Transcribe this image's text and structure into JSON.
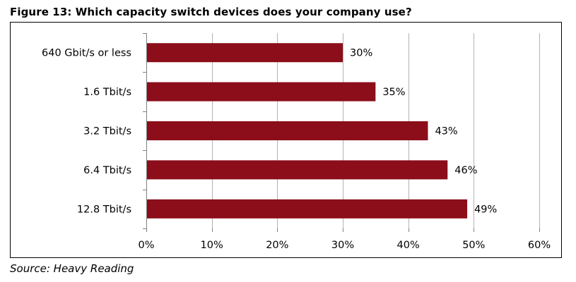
{
  "figure": {
    "title": "Figure 13: Which capacity switch devices does your company use?",
    "source": "Source: Heavy Reading"
  },
  "chart_data": {
    "type": "bar",
    "orientation": "horizontal",
    "title": "Figure 13: Which capacity switch devices does your company use?",
    "xlabel": "",
    "ylabel": "",
    "categories": [
      "640 Gbit/s or less",
      "1.6 Tbit/s",
      "3.2 Tbit/s",
      "6.4 Tbit/s",
      "12.8 Tbit/s"
    ],
    "values": [
      30,
      35,
      43,
      46,
      49
    ],
    "value_labels": [
      "30%",
      "35%",
      "43%",
      "46%",
      "49%"
    ],
    "xlim": [
      0,
      60
    ],
    "x_ticks": [
      0,
      10,
      20,
      30,
      40,
      50,
      60
    ],
    "x_tick_labels": [
      "0%",
      "10%",
      "20%",
      "30%",
      "40%",
      "50%",
      "60%"
    ],
    "grid": "vertical",
    "legend": "none",
    "bar_color": "#8b0e1a",
    "grid_color": "#b3b3b3",
    "axis_color": "#808080"
  }
}
